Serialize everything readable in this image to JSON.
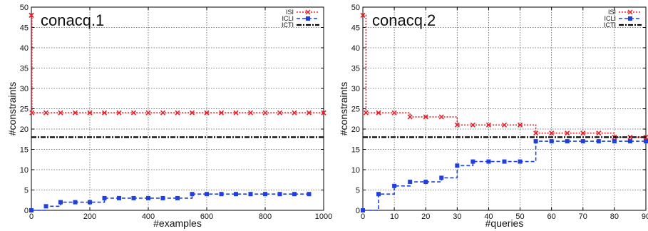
{
  "chart_data": [
    {
      "type": "line",
      "title": "conacq.1",
      "xlabel": "#examples",
      "ylabel": "#constraints",
      "xlim": [
        0,
        1000
      ],
      "ylim": [
        0,
        50
      ],
      "xticks": [
        0,
        200,
        400,
        600,
        800,
        1000
      ],
      "yticks": [
        0,
        5,
        10,
        15,
        20,
        25,
        30,
        35,
        40,
        45,
        50
      ],
      "grid": true,
      "legend_position": "top-right",
      "series": [
        {
          "name": "ISI",
          "color": "#e8202a",
          "line_style": "dotted",
          "marker": "x",
          "x": [
            0,
            0,
            2,
            50,
            100,
            150,
            200,
            250,
            300,
            350,
            400,
            450,
            500,
            550,
            600,
            650,
            700,
            750,
            800,
            850,
            900,
            950,
            1000
          ],
          "y": [
            48,
            48,
            24,
            24,
            24,
            24,
            24,
            24,
            24,
            24,
            24,
            24,
            24,
            24,
            24,
            24,
            24,
            24,
            24,
            24,
            24,
            24,
            24
          ]
        },
        {
          "name": "ICLI",
          "color": "#1f3fe0",
          "line_style": "dashed",
          "marker": "square",
          "x": [
            0,
            50,
            100,
            150,
            200,
            250,
            300,
            350,
            400,
            450,
            500,
            550,
            600,
            650,
            700,
            750,
            800,
            850,
            900,
            950
          ],
          "y": [
            0,
            1,
            2,
            2,
            2,
            3,
            3,
            3,
            3,
            3,
            3,
            4,
            4,
            4,
            4,
            4,
            4,
            4,
            4,
            4
          ]
        },
        {
          "name": "ICTI",
          "color": "#000000",
          "line_style": "dash-dot",
          "marker": "none",
          "x": [
            0,
            1000
          ],
          "y": [
            18,
            18
          ]
        }
      ]
    },
    {
      "type": "line",
      "title": "conacq.2",
      "xlabel": "#queries",
      "ylabel": "#constraints",
      "xlim": [
        0,
        90
      ],
      "ylim": [
        0,
        50
      ],
      "xticks": [
        0,
        10,
        20,
        30,
        40,
        50,
        60,
        70,
        80,
        90
      ],
      "yticks": [
        0,
        5,
        10,
        15,
        20,
        25,
        30,
        35,
        40,
        45,
        50
      ],
      "grid": true,
      "legend_position": "top-right",
      "series": [
        {
          "name": "ISI",
          "color": "#e8202a",
          "line_style": "dotted",
          "marker": "x",
          "x": [
            0,
            1,
            5,
            10,
            15,
            20,
            25,
            30,
            35,
            40,
            45,
            50,
            55,
            60,
            65,
            70,
            75,
            80,
            85,
            90
          ],
          "y": [
            48,
            24,
            24,
            24,
            23,
            23,
            23,
            21,
            21,
            21,
            21,
            21,
            19,
            19,
            19,
            19,
            19,
            18,
            18,
            18
          ]
        },
        {
          "name": "ICLI",
          "color": "#1f3fe0",
          "line_style": "dashed",
          "marker": "square",
          "x": [
            0,
            5,
            10,
            15,
            20,
            25,
            30,
            35,
            40,
            45,
            50,
            55,
            60,
            65,
            70,
            75,
            80,
            85,
            90
          ],
          "y": [
            0,
            4,
            6,
            7,
            7,
            8,
            11,
            12,
            12,
            12,
            12,
            17,
            17,
            17,
            17,
            17,
            17,
            17,
            17
          ]
        },
        {
          "name": "ICTI",
          "color": "#000000",
          "line_style": "dash-dot",
          "marker": "none",
          "x": [
            0,
            90
          ],
          "y": [
            18,
            18
          ]
        }
      ]
    }
  ]
}
